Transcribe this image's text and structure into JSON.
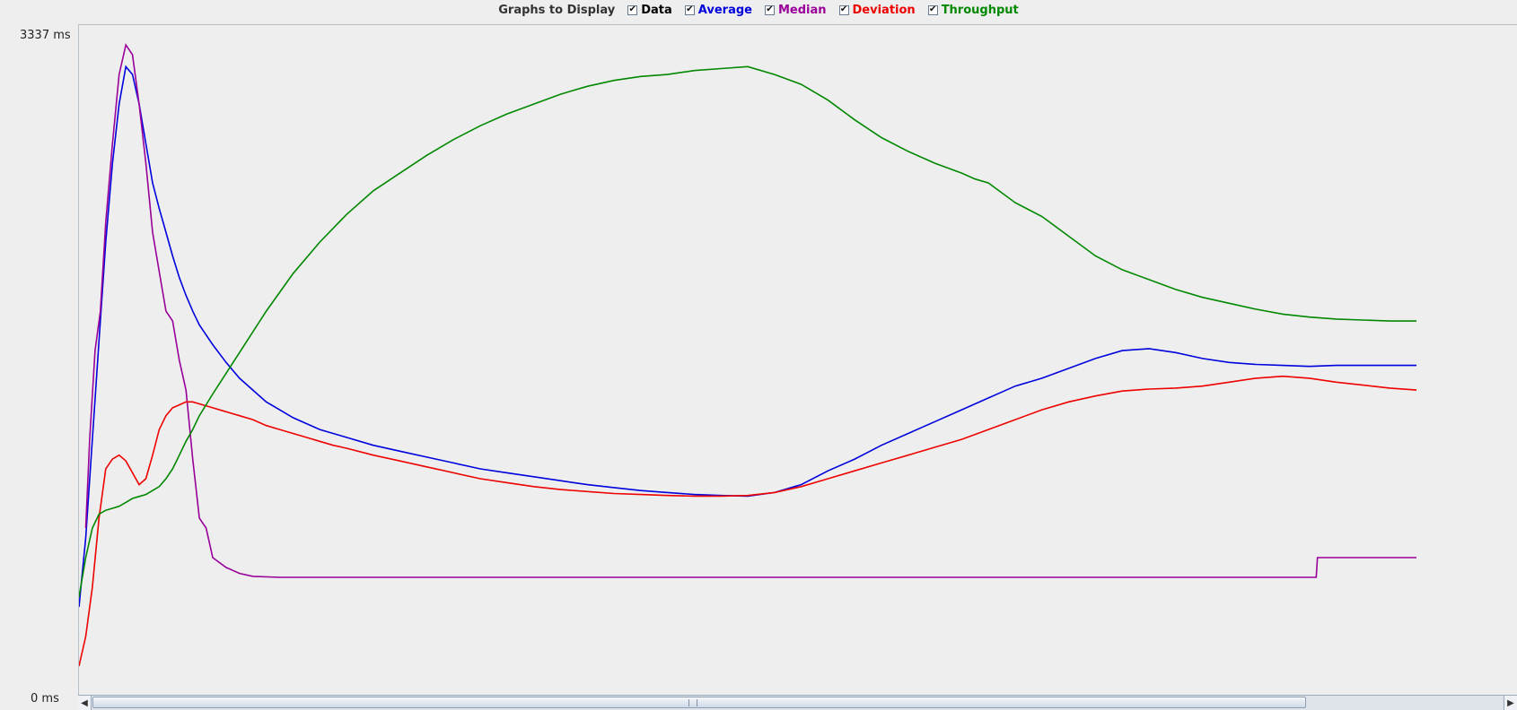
{
  "header": {
    "title": "Graphs to Display",
    "toggles": [
      {
        "label": "Data",
        "checked": true,
        "color": "#000000"
      },
      {
        "label": "Average",
        "checked": true,
        "color": "#0000dd"
      },
      {
        "label": "Median",
        "checked": true,
        "color": "#990099"
      },
      {
        "label": "Deviation",
        "checked": true,
        "color": "#ee0000"
      },
      {
        "label": "Throughput",
        "checked": true,
        "color": "#008800"
      }
    ]
  },
  "axis": {
    "y_max_label": "3337  ms",
    "y_min_label": "0  ms"
  },
  "icons": {
    "check": "checkmark-icon",
    "scroll_left": "arrow-left-icon",
    "scroll_right": "arrow-right-icon"
  },
  "chart_data": {
    "type": "line",
    "title": "",
    "xlabel": "",
    "ylabel": "",
    "ylim": [
      0,
      3337
    ],
    "xlim": [
      0,
      1000
    ],
    "grid": false,
    "legend": "top",
    "series": [
      {
        "name": "Average",
        "color": "#0000dd",
        "x": [
          0,
          5,
          10,
          15,
          20,
          25,
          30,
          35,
          40,
          45,
          50,
          55,
          60,
          65,
          70,
          75,
          80,
          85,
          90,
          100,
          110,
          120,
          130,
          140,
          150,
          160,
          170,
          180,
          190,
          200,
          220,
          240,
          260,
          280,
          300,
          320,
          340,
          360,
          380,
          400,
          420,
          440,
          460,
          480,
          500,
          520,
          540,
          560,
          580,
          600,
          620,
          640,
          660,
          670,
          680,
          690,
          700,
          720,
          740,
          760,
          780,
          800,
          820,
          840,
          860,
          880,
          900,
          920,
          940,
          960,
          980,
          1000
        ],
        "y": [
          450,
          800,
          1300,
          1800,
          2300,
          2700,
          3000,
          3190,
          3150,
          3000,
          2800,
          2600,
          2470,
          2350,
          2230,
          2120,
          2030,
          1950,
          1880,
          1780,
          1690,
          1610,
          1550,
          1490,
          1450,
          1410,
          1380,
          1350,
          1330,
          1310,
          1270,
          1240,
          1210,
          1180,
          1150,
          1130,
          1110,
          1090,
          1070,
          1055,
          1040,
          1030,
          1020,
          1015,
          1012,
          1030,
          1070,
          1140,
          1200,
          1270,
          1330,
          1390,
          1450,
          1480,
          1510,
          1540,
          1570,
          1610,
          1660,
          1710,
          1750,
          1760,
          1740,
          1710,
          1690,
          1680,
          1675,
          1670,
          1675,
          1675,
          1675,
          1675
        ]
      },
      {
        "name": "Median",
        "color": "#990099",
        "x": [
          5,
          8,
          12,
          16,
          20,
          25,
          30,
          35,
          40,
          45,
          50,
          55,
          60,
          65,
          70,
          75,
          80,
          85,
          90,
          95,
          100,
          110,
          120,
          130,
          150,
          200,
          300,
          400,
          500,
          600,
          700,
          800,
          900,
          925,
          926,
          950,
          1000
        ],
        "y": [
          850,
          1300,
          1750,
          1950,
          2400,
          2800,
          3150,
          3300,
          3250,
          3000,
          2700,
          2350,
          2150,
          1950,
          1900,
          1700,
          1550,
          1200,
          900,
          850,
          700,
          650,
          620,
          605,
          600,
          600,
          600,
          600,
          600,
          600,
          600,
          600,
          600,
          600,
          700,
          700,
          700
        ]
      },
      {
        "name": "Deviation",
        "color": "#ee0000",
        "x": [
          0,
          5,
          10,
          15,
          20,
          25,
          30,
          35,
          40,
          45,
          50,
          55,
          60,
          65,
          70,
          75,
          80,
          85,
          90,
          100,
          110,
          120,
          130,
          140,
          150,
          160,
          170,
          180,
          190,
          200,
          220,
          240,
          260,
          280,
          300,
          320,
          340,
          360,
          380,
          400,
          420,
          440,
          460,
          480,
          500,
          520,
          540,
          560,
          580,
          600,
          620,
          640,
          660,
          680,
          700,
          720,
          740,
          760,
          780,
          800,
          820,
          840,
          860,
          880,
          900,
          920,
          940,
          960,
          980,
          1000
        ],
        "y": [
          150,
          300,
          550,
          900,
          1150,
          1200,
          1220,
          1190,
          1130,
          1070,
          1100,
          1220,
          1350,
          1420,
          1460,
          1475,
          1490,
          1490,
          1480,
          1460,
          1440,
          1420,
          1400,
          1370,
          1350,
          1330,
          1310,
          1290,
          1270,
          1255,
          1220,
          1190,
          1160,
          1130,
          1100,
          1080,
          1060,
          1045,
          1035,
          1025,
          1020,
          1015,
          1012,
          1012,
          1015,
          1030,
          1060,
          1100,
          1140,
          1180,
          1220,
          1260,
          1300,
          1350,
          1400,
          1450,
          1490,
          1520,
          1545,
          1555,
          1560,
          1570,
          1590,
          1610,
          1620,
          1610,
          1590,
          1575,
          1560,
          1550
        ]
      },
      {
        "name": "Throughput",
        "color": "#008800",
        "x": [
          0,
          5,
          10,
          15,
          20,
          25,
          30,
          35,
          40,
          45,
          50,
          55,
          60,
          65,
          70,
          75,
          80,
          85,
          90,
          100,
          120,
          140,
          160,
          180,
          200,
          220,
          240,
          260,
          280,
          300,
          320,
          340,
          360,
          380,
          400,
          420,
          440,
          460,
          480,
          500,
          520,
          540,
          560,
          580,
          600,
          620,
          640,
          660,
          670,
          680,
          690,
          700,
          720,
          740,
          760,
          780,
          800,
          820,
          840,
          860,
          880,
          900,
          920,
          940,
          960,
          980,
          1000
        ],
        "y": [
          500,
          700,
          850,
          920,
          940,
          950,
          960,
          980,
          1000,
          1010,
          1020,
          1040,
          1060,
          1100,
          1150,
          1220,
          1290,
          1350,
          1420,
          1530,
          1740,
          1950,
          2140,
          2300,
          2440,
          2560,
          2650,
          2740,
          2820,
          2890,
          2950,
          3000,
          3050,
          3090,
          3120,
          3140,
          3150,
          3170,
          3180,
          3190,
          3150,
          3100,
          3020,
          2920,
          2830,
          2760,
          2700,
          2650,
          2620,
          2600,
          2550,
          2500,
          2430,
          2330,
          2230,
          2160,
          2110,
          2060,
          2020,
          1990,
          1960,
          1935,
          1920,
          1910,
          1905,
          1900,
          1900
        ]
      }
    ]
  }
}
